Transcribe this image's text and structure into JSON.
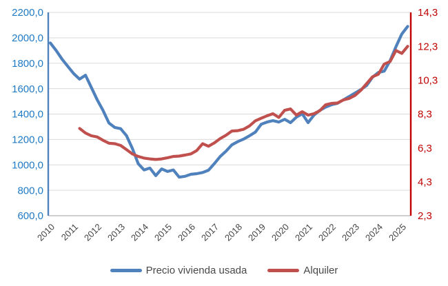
{
  "chart_data": {
    "type": "line",
    "x_axis": {
      "unit": "year",
      "first_year": 2010,
      "tick_labels": [
        "2010",
        "2011",
        "2012",
        "2013",
        "2014",
        "2015",
        "2016",
        "2017",
        "2018",
        "2019",
        "2020",
        "2021",
        "2022",
        "2023",
        "2024",
        "2025"
      ],
      "label_color": "#444444"
    },
    "left_axis": {
      "range": [
        600,
        2200
      ],
      "ticks": [
        600,
        800,
        1000,
        1200,
        1400,
        1600,
        1800,
        2000,
        2200
      ],
      "tick_labels": [
        "600,0",
        "800,0",
        "1000,0",
        "1200,0",
        "1400,0",
        "1600,0",
        "1800,0",
        "2000,0",
        "2200,0"
      ],
      "label_color": "#1F7AC4",
      "line_color": "#4F81BD"
    },
    "right_axis": {
      "range": [
        2.3,
        14.3
      ],
      "ticks": [
        2.3,
        4.3,
        6.3,
        8.3,
        10.3,
        12.3,
        14.3
      ],
      "tick_labels": [
        "2,3",
        "4,3",
        "6,3",
        "8,3",
        "10,3",
        "12,3",
        "14,3"
      ],
      "label_color": "#C00000",
      "line_color": "#C00000"
    },
    "grid": true,
    "gridline_color": "#D9D9D9",
    "bottom_axis_color": "#BFBFBF",
    "legend_position": "bottom",
    "series": [
      {
        "name": "Precio vivienda usada",
        "color": "#4F81BD",
        "axis": "left",
        "x_start": 2010.0,
        "x_step": 0.25,
        "values": [
          1960,
          1900,
          1832,
          1775,
          1718,
          1675,
          1706,
          1610,
          1513,
          1428,
          1330,
          1295,
          1285,
          1230,
          1130,
          1010,
          960,
          975,
          915,
          968,
          948,
          960,
          903,
          910,
          926,
          931,
          940,
          958,
          1010,
          1066,
          1108,
          1158,
          1183,
          1203,
          1229,
          1258,
          1320,
          1337,
          1348,
          1337,
          1359,
          1332,
          1375,
          1402,
          1332,
          1392,
          1429,
          1455,
          1473,
          1484,
          1511,
          1538,
          1565,
          1592,
          1625,
          1690,
          1727,
          1738,
          1820,
          1930,
          2030,
          2090
        ]
      },
      {
        "name": "Alquiler",
        "color": "#C0504D",
        "axis": "right",
        "x_start": 2011.25,
        "x_step": 0.25,
        "values": [
          7.45,
          7.18,
          7.02,
          6.95,
          6.75,
          6.58,
          6.55,
          6.45,
          6.2,
          5.95,
          5.8,
          5.7,
          5.65,
          5.62,
          5.65,
          5.72,
          5.8,
          5.82,
          5.88,
          5.95,
          6.15,
          6.55,
          6.4,
          6.6,
          6.85,
          7.05,
          7.3,
          7.32,
          7.4,
          7.6,
          7.9,
          8.05,
          8.2,
          8.32,
          8.1,
          8.52,
          8.6,
          8.24,
          8.44,
          8.24,
          8.32,
          8.5,
          8.85,
          8.93,
          8.95,
          9.13,
          9.22,
          9.4,
          9.7,
          10.1,
          10.5,
          10.65,
          11.25,
          11.4,
          12.05,
          11.88,
          12.3
        ]
      }
    ]
  }
}
